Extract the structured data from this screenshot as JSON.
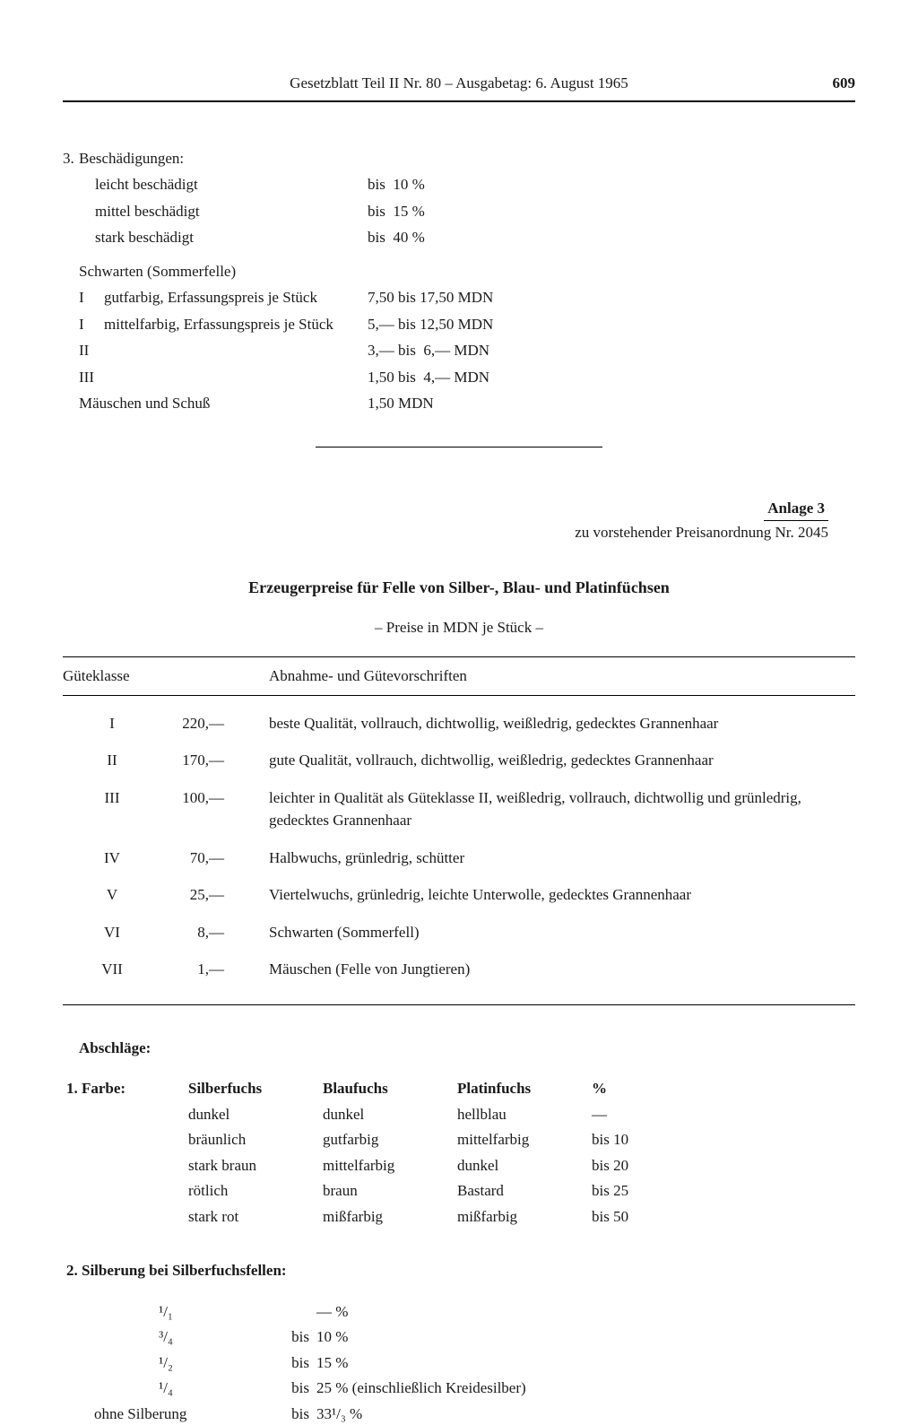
{
  "header": {
    "text": "Gesetzblatt Teil II Nr. 80 – Ausgabetag: 6. August 1965",
    "page": "609"
  },
  "section3": {
    "num": "3.",
    "title": "Beschädigungen:",
    "rows": [
      {
        "label": "leicht beschädigt",
        "value": "bis  10 %"
      },
      {
        "label": "mittel beschädigt",
        "value": "bis  15 %"
      },
      {
        "label": "stark beschädigt",
        "value": "bis  40 %"
      }
    ],
    "schwarten_title": "Schwarten (Sommerfelle)",
    "schwarten_rows": [
      {
        "roman": "I",
        "label": "gutfarbig, Erfassungspreis je Stück",
        "value": "7,50 bis 17,50 MDN"
      },
      {
        "roman": "I",
        "label": "mittelfarbig, Erfassungspreis je Stück",
        "value": "5,— bis 12,50 MDN"
      },
      {
        "roman": "II",
        "label": "",
        "value": "3,— bis  6,— MDN"
      },
      {
        "roman": "III",
        "label": "",
        "value": "1,50 bis  4,— MDN"
      }
    ],
    "last_row": {
      "label": "Mäuschen und Schuß",
      "value": "1,50 MDN"
    }
  },
  "anlage": {
    "heading": "Anlage 3",
    "sub": "zu vorstehender Preisanordnung Nr. 2045"
  },
  "title2": "Erzeugerpreise für Felle von Silber-, Blau- und Platinfüchsen",
  "subtitle": "– Preise in MDN je Stück –",
  "table": {
    "h1": "Güteklasse",
    "h2": "Abnahme- und Gütevorschriften",
    "rows": [
      {
        "k": "I",
        "p": "220,—",
        "d": "beste Qualität, vollrauch, dichtwollig, weißledrig, gedecktes Grannenhaar"
      },
      {
        "k": "II",
        "p": "170,—",
        "d": "gute Qualität, vollrauch, dichtwollig, weißledrig, gedecktes Grannenhaar"
      },
      {
        "k": "III",
        "p": "100,—",
        "d": "leichter in Qualität als Güteklasse II, weißledrig, vollrauch, dichtwollig und grünledrig, gedecktes Grannenhaar"
      },
      {
        "k": "IV",
        "p": "70,—",
        "d": "Halbwuchs, grünledrig, schütter"
      },
      {
        "k": "V",
        "p": "25,—",
        "d": "Viertelwuchs, grünledrig, leichte Unterwolle, gedecktes Grannenhaar"
      },
      {
        "k": "VI",
        "p": "8,—",
        "d": "Schwarten (Sommerfell)"
      },
      {
        "k": "VII",
        "p": "1,—",
        "d": "Mäuschen (Felle von Jungtieren)"
      }
    ]
  },
  "abschlaege": "Abschläge:",
  "farbe": {
    "num": "1.",
    "title": "Farbe:",
    "h1": "Silberfuchs",
    "h2": "Blaufuchs",
    "h3": "Platinfuchs",
    "h4": "%",
    "rows": [
      {
        "c1": "dunkel",
        "c2": "dunkel",
        "c3": "hellblau",
        "c4": "—"
      },
      {
        "c1": "bräunlich",
        "c2": "gutfarbig",
        "c3": "mittelfarbig",
        "c4": "bis 10"
      },
      {
        "c1": "stark braun",
        "c2": "mittelfarbig",
        "c3": "dunkel",
        "c4": "bis 20"
      },
      {
        "c1": "rötlich",
        "c2": "braun",
        "c3": "Bastard",
        "c4": "bis 25"
      },
      {
        "c1": "stark rot",
        "c2": "mißfarbig",
        "c3": "mißfarbig",
        "c4": "bis 50"
      }
    ]
  },
  "silber": {
    "num": "2.",
    "title": "Silberung bei Silberfuchsfellen:",
    "rows": [
      {
        "frac": "¹/₁",
        "pre": "",
        "val": "— %"
      },
      {
        "frac": "³/₄",
        "pre": "bis",
        "val": "10 %"
      },
      {
        "frac": "¹/₂",
        "pre": "bis",
        "val": "15 %"
      },
      {
        "frac": "¹/₄",
        "pre": "bis",
        "val": "25 % (einschließlich Kreidesilber)"
      }
    ],
    "last": {
      "label": "ohne Silberung",
      "pre": "bis",
      "val": "33¹/₃ %"
    }
  }
}
